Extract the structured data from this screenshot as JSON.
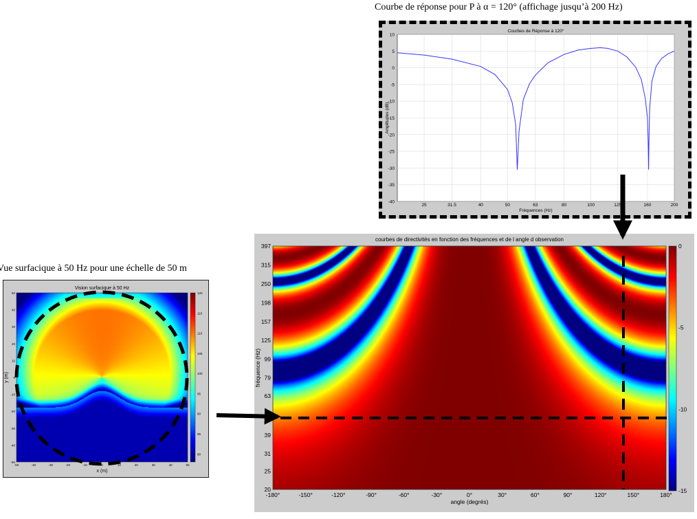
{
  "captions": {
    "top_right": "Courbe de réponse pour P à α = 120° (affichage jusqu’à 200 Hz)",
    "left": "Vue surfacique à 50 Hz pour une échelle de 50 m"
  },
  "chart_data": [
    {
      "id": "response",
      "type": "line",
      "title": "Courbes de Réponse à 120°",
      "xlabel": "Fréquences (Hz)",
      "ylabel": "Amplitudes (dB)",
      "x_scale": "log",
      "xlim": [
        20,
        200
      ],
      "ylim": [
        -40,
        10
      ],
      "x_ticks": [
        "25",
        "31.5",
        "40",
        "50",
        "63",
        "80",
        "100",
        "125",
        "160",
        "200"
      ],
      "x_tick_values": [
        25,
        31.5,
        40,
        50,
        63,
        80,
        100,
        125,
        160,
        200
      ],
      "y_ticks": [
        "10",
        "5",
        "0",
        "-5",
        "-10",
        "-15",
        "-20",
        "-25",
        "-30",
        "-35",
        "-40"
      ],
      "grid": true,
      "line_color": "#3333ff",
      "series": [
        {
          "x": [
            20,
            25,
            31.5,
            40,
            45,
            50,
            52,
            53.5,
            54.2,
            55,
            57,
            60,
            63,
            70,
            80,
            90,
            100,
            108,
            115,
            125,
            135,
            145,
            152,
            157,
            160,
            161,
            161.5,
            162,
            163,
            166,
            172,
            180,
            190,
            200
          ],
          "y": [
            4.5,
            3.8,
            2.6,
            0.4,
            -2.0,
            -6.5,
            -10.5,
            -17.0,
            -30.5,
            -19.0,
            -9.5,
            -4.8,
            -2.2,
            1.5,
            4.0,
            5.3,
            5.8,
            6.0,
            5.8,
            5.0,
            3.2,
            0.2,
            -3.5,
            -9.0,
            -15.0,
            -22.0,
            -30.5,
            -22.0,
            -12.0,
            -4.0,
            0.5,
            2.8,
            4.2,
            5.0
          ]
        }
      ]
    },
    {
      "id": "directivity",
      "type": "heatmap",
      "title": "courbes de directivités en fonction des fréquences et de l angle d observation",
      "xlabel": "angle (degrés)",
      "ylabel": "fréquence (Hz)",
      "x_ticks": [
        "-180°",
        "-150°",
        "-120°",
        "-90°",
        "-60°",
        "-30°",
        "0°",
        "30°",
        "60°",
        "90°",
        "120°",
        "150°",
        "180°"
      ],
      "y_ticks": [
        "397",
        "315",
        "250",
        "198",
        "157",
        "125",
        "99",
        "79",
        "63",
        "50",
        "39",
        "31",
        "25",
        "20"
      ],
      "colorbar": {
        "ticks": [
          "0",
          "-5",
          "-10",
          "-15"
        ],
        "range": [
          -15,
          0
        ],
        "colormap": "jet"
      },
      "markers": {
        "frequency_hz": 50,
        "angle_deg": 145
      }
    },
    {
      "id": "surface",
      "type": "heatmap",
      "title": "Vision surfacique à 50 Hz",
      "xlabel": "x (m)",
      "ylabel": "y (m)",
      "x_ticks": [
        "-50",
        "-40",
        "-30",
        "-20",
        "-10",
        "0",
        "10",
        "20",
        "30",
        "40",
        "50"
      ],
      "y_ticks": [
        "50",
        "40",
        "30",
        "20",
        "10",
        "0",
        "-10",
        "-20",
        "-30",
        "-40",
        "-50"
      ],
      "colorbar": {
        "ticks": [
          "120",
          "115",
          "110",
          "105",
          "100",
          "95",
          "90",
          "85",
          "80"
        ],
        "range": [
          78,
          120
        ],
        "colormap": "jet"
      }
    }
  ]
}
